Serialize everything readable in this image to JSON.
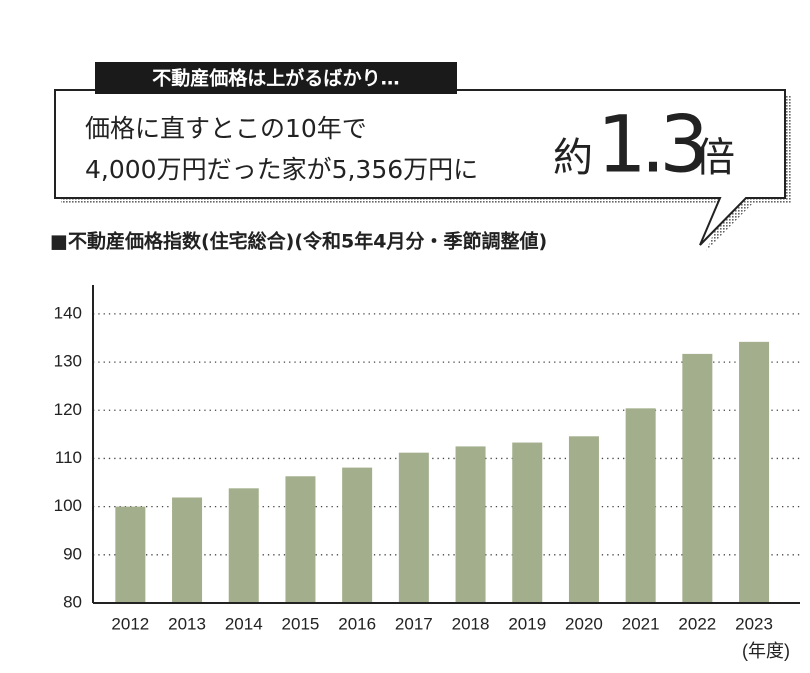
{
  "callout": {
    "label": "不動産価格は上がるばかり…",
    "lines": [
      "価格に直すとこの10年で",
      "4,000万円だった家が5,356万円に"
    ],
    "highlight": [
      "約",
      "1.3",
      "倍"
    ]
  },
  "chart_data": {
    "type": "bar",
    "title": "■不動産価格指数(住宅総合)(令和5年4月分・季節調整値)",
    "x_label": "(年度)",
    "categories": [
      "2012",
      "2013",
      "2014",
      "2015",
      "2016",
      "2017",
      "2018",
      "2019",
      "2020",
      "2021",
      "2022",
      "2023"
    ],
    "values": [
      100,
      101.9,
      103.8,
      106.3,
      108.1,
      111.2,
      112.5,
      113.3,
      114.6,
      120.4,
      131.7,
      134.2
    ],
    "color": "#a3ae8c",
    "ylim": [
      80,
      146
    ],
    "yticks": [
      80,
      90,
      100,
      110,
      120,
      130,
      140
    ],
    "grid": true
  }
}
